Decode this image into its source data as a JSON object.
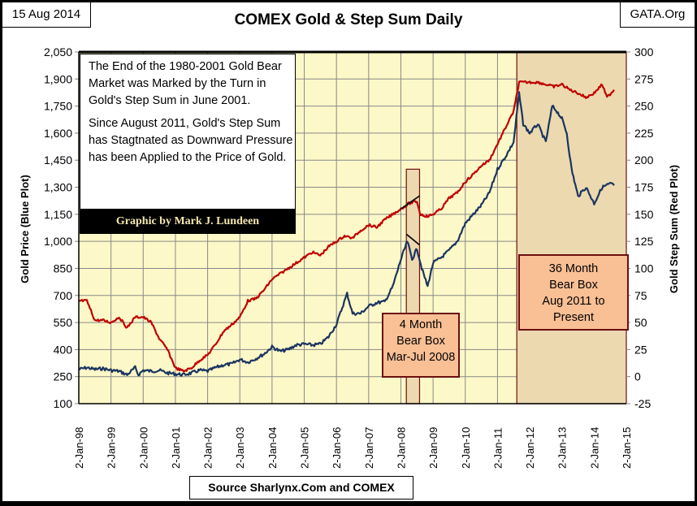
{
  "header": {
    "date": "15 Aug 2014",
    "title": "COMEX Gold & Step Sum Daily",
    "site": "GATA.Org"
  },
  "footer": {
    "source": "Source Sharlynx.Com and COMEX"
  },
  "annotations": {
    "note_paragraphs": [
      "The End of the 1980-2001 Gold Bear Market  was Marked by the Turn in Gold's Step Sum in June 2001.",
      "Since August 2011, Gold's Step Sum has Stagtnated as Downward Pressure has been Applied to the Price of Gold."
    ],
    "credit": "Graphic by Mark J. Lundeen",
    "bear_box_1": [
      "4 Month",
      "Bear Box",
      "Mar-Jul 2008"
    ],
    "bear_box_2": [
      "36 Month",
      "Bear Box",
      "Aug 2011 to",
      "Present"
    ]
  },
  "colors": {
    "plot_bg": "#fdf8c8",
    "bear_box_fill": "#ecd9b0",
    "bear_label_fill": "#f9bf95",
    "bear_border": "#6b0f0f",
    "gold_price": "#1a3560",
    "step_sum": "#c00000",
    "grid": "#888888"
  },
  "chart_data": {
    "type": "line",
    "title": "COMEX Gold & Step Sum Daily",
    "xlabel": "",
    "ylabel": "Gold Price    (Blue Plot)",
    "y2label": "Gold Step Sum    (Red Plot)",
    "x_tick_labels": [
      "2-Jan-98",
      "2-Jan-99",
      "2-Jan-00",
      "2-Jan-01",
      "2-Jan-02",
      "2-Jan-03",
      "2-Jan-04",
      "2-Jan-05",
      "2-Jan-06",
      "2-Jan-07",
      "2-Jan-08",
      "2-Jan-09",
      "2-Jan-10",
      "2-Jan-11",
      "2-Jan-12",
      "2-Jan-13",
      "2-Jan-14",
      "2-Jan-15"
    ],
    "xlim": [
      1998.0,
      2015.0
    ],
    "ylim": [
      100,
      2050
    ],
    "y_ticks": [
      "100",
      "250",
      "400",
      "550",
      "700",
      "850",
      "1,000",
      "1,150",
      "1,300",
      "1,450",
      "1,600",
      "1,750",
      "1,900",
      "2,050"
    ],
    "y2lim": [
      -25,
      300
    ],
    "y2_ticks": [
      "-25",
      "0",
      "25",
      "50",
      "75",
      "100",
      "125",
      "150",
      "175",
      "200",
      "225",
      "250",
      "275",
      "300"
    ],
    "grid": true,
    "shaded_regions": [
      {
        "name": "4 Month Bear Box",
        "x_start": 2008.17,
        "x_end": 2008.58
      },
      {
        "name": "36 Month Bear Box",
        "x_start": 2011.6,
        "x_end": 2015.0
      }
    ],
    "trend_lines": [
      {
        "series": "Gold Step Sum",
        "x": [
          2008.0,
          2008.58
        ],
        "y": [
          155,
          167
        ]
      },
      {
        "series": "Gold Price",
        "x": [
          2008.17,
          2008.58
        ],
        "y": [
          1040,
          980
        ]
      }
    ],
    "series": [
      {
        "name": "Gold Price",
        "axis": "left",
        "x": [
          1998.0,
          1998.25,
          1998.5,
          1998.75,
          1999.0,
          1999.25,
          1999.5,
          1999.75,
          1999.85,
          2000.0,
          2000.25,
          2000.5,
          2000.75,
          2001.0,
          2001.25,
          2001.5,
          2001.75,
          2002.0,
          2002.25,
          2002.5,
          2002.75,
          2003.0,
          2003.25,
          2003.5,
          2003.75,
          2004.0,
          2004.25,
          2004.5,
          2004.75,
          2005.0,
          2005.25,
          2005.5,
          2005.75,
          2006.0,
          2006.33,
          2006.5,
          2006.75,
          2007.0,
          2007.25,
          2007.5,
          2007.75,
          2008.0,
          2008.2,
          2008.35,
          2008.5,
          2008.65,
          2008.83,
          2009.0,
          2009.25,
          2009.5,
          2009.75,
          2010.0,
          2010.25,
          2010.5,
          2010.75,
          2011.0,
          2011.25,
          2011.5,
          2011.67,
          2011.8,
          2012.0,
          2012.25,
          2012.5,
          2012.7,
          2012.85,
          2013.0,
          2013.15,
          2013.3,
          2013.5,
          2013.75,
          2014.0,
          2014.25,
          2014.5,
          2014.62
        ],
        "y": [
          290,
          300,
          290,
          295,
          285,
          280,
          260,
          300,
          260,
          285,
          280,
          285,
          270,
          265,
          260,
          270,
          285,
          280,
          300,
          315,
          320,
          345,
          330,
          350,
          375,
          415,
          390,
          400,
          425,
          430,
          425,
          430,
          470,
          540,
          710,
          600,
          600,
          640,
          660,
          665,
          750,
          900,
          1000,
          900,
          960,
          850,
          750,
          880,
          910,
          950,
          1000,
          1100,
          1150,
          1200,
          1270,
          1400,
          1470,
          1550,
          1820,
          1650,
          1600,
          1650,
          1550,
          1750,
          1720,
          1680,
          1600,
          1400,
          1250,
          1300,
          1210,
          1300,
          1320,
          1310
        ]
      },
      {
        "name": "Gold Step Sum",
        "axis": "right",
        "x": [
          1998.0,
          1998.25,
          1998.5,
          1998.75,
          1999.0,
          1999.25,
          1999.5,
          1999.75,
          2000.0,
          2000.25,
          2000.5,
          2000.75,
          2001.0,
          2001.25,
          2001.5,
          2001.75,
          2002.0,
          2002.25,
          2002.5,
          2002.75,
          2003.0,
          2003.25,
          2003.5,
          2003.75,
          2004.0,
          2004.25,
          2004.5,
          2004.75,
          2005.0,
          2005.25,
          2005.5,
          2005.75,
          2006.0,
          2006.25,
          2006.5,
          2006.75,
          2007.0,
          2007.25,
          2007.5,
          2007.75,
          2008.0,
          2008.25,
          2008.5,
          2008.6,
          2008.83,
          2009.0,
          2009.25,
          2009.5,
          2009.75,
          2010.0,
          2010.25,
          2010.5,
          2010.75,
          2011.0,
          2011.25,
          2011.5,
          2011.67,
          2012.0,
          2012.25,
          2012.5,
          2012.75,
          2013.0,
          2013.25,
          2013.5,
          2013.75,
          2014.0,
          2014.25,
          2014.4,
          2014.62
        ],
        "y": [
          70,
          70,
          52,
          52,
          50,
          55,
          45,
          55,
          55,
          50,
          35,
          25,
          8,
          5,
          8,
          15,
          20,
          30,
          42,
          48,
          55,
          70,
          72,
          80,
          90,
          95,
          100,
          105,
          110,
          115,
          112,
          120,
          125,
          130,
          128,
          135,
          140,
          138,
          145,
          150,
          155,
          160,
          162,
          150,
          148,
          150,
          155,
          165,
          170,
          180,
          187,
          195,
          200,
          215,
          230,
          245,
          272,
          272,
          272,
          270,
          268,
          270,
          265,
          262,
          258,
          262,
          270,
          258,
          265
        ]
      }
    ]
  }
}
